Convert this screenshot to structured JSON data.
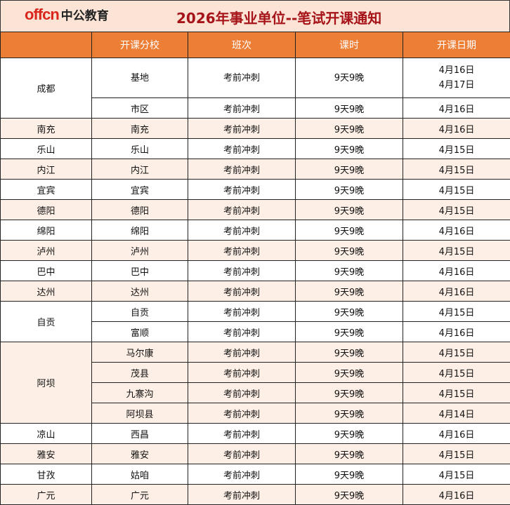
{
  "banner": {
    "logo_en": "offcn",
    "logo_cn": "中公教育",
    "title": "2026年事业单位--笔试开课通知"
  },
  "colors": {
    "header": "#ec7e36",
    "title": "#a6141a",
    "banner": "#fbe4d6",
    "row_alt": "#fdefe5"
  },
  "headers": [
    "",
    "开课分校",
    "班次",
    "课时",
    "开课日期"
  ],
  "groups": [
    {
      "city": "成都",
      "branches": [
        {
          "branch": "基地",
          "class": "考前冲刺",
          "hours": "9天9晚",
          "dates": [
            "4月16日",
            "4月17日"
          ]
        },
        {
          "branch": "市区",
          "class": "考前冲刺",
          "hours": "9天9晚",
          "dates": [
            "4月16日"
          ]
        }
      ]
    },
    {
      "city": "南充",
      "branches": [
        {
          "branch": "南充",
          "class": "考前冲刺",
          "hours": "9天9晚",
          "dates": [
            "4月16日"
          ]
        }
      ]
    },
    {
      "city": "乐山",
      "branches": [
        {
          "branch": "乐山",
          "class": "考前冲刺",
          "hours": "9天9晚",
          "dates": [
            "4月15日"
          ]
        }
      ]
    },
    {
      "city": "内江",
      "branches": [
        {
          "branch": "内江",
          "class": "考前冲刺",
          "hours": "9天9晚",
          "dates": [
            "4月15日"
          ]
        }
      ]
    },
    {
      "city": "宜宾",
      "branches": [
        {
          "branch": "宜宾",
          "class": "考前冲刺",
          "hours": "9天9晚",
          "dates": [
            "4月15日"
          ]
        }
      ]
    },
    {
      "city": "德阳",
      "branches": [
        {
          "branch": "德阳",
          "class": "考前冲刺",
          "hours": "9天9晚",
          "dates": [
            "4月15日"
          ]
        }
      ]
    },
    {
      "city": "绵阳",
      "branches": [
        {
          "branch": "绵阳",
          "class": "考前冲刺",
          "hours": "9天9晚",
          "dates": [
            "4月16日"
          ]
        }
      ]
    },
    {
      "city": "泸州",
      "branches": [
        {
          "branch": "泸州",
          "class": "考前冲刺",
          "hours": "9天9晚",
          "dates": [
            "4月15日"
          ]
        }
      ]
    },
    {
      "city": "巴中",
      "branches": [
        {
          "branch": "巴中",
          "class": "考前冲刺",
          "hours": "9天9晚",
          "dates": [
            "4月16日"
          ]
        }
      ]
    },
    {
      "city": "达州",
      "branches": [
        {
          "branch": "达州",
          "class": "考前冲刺",
          "hours": "9天9晚",
          "dates": [
            "4月16日"
          ]
        }
      ]
    },
    {
      "city": "自贡",
      "branches": [
        {
          "branch": "自贡",
          "class": "考前冲刺",
          "hours": "9天9晚",
          "dates": [
            "4月15日"
          ]
        },
        {
          "branch": "富顺",
          "class": "考前冲刺",
          "hours": "9天9晚",
          "dates": [
            "4月16日"
          ]
        }
      ]
    },
    {
      "city": "阿坝",
      "branches": [
        {
          "branch": "马尔康",
          "class": "考前冲刺",
          "hours": "9天9晚",
          "dates": [
            "4月15日"
          ]
        },
        {
          "branch": "茂县",
          "class": "考前冲刺",
          "hours": "9天9晚",
          "dates": [
            "4月15日"
          ]
        },
        {
          "branch": "九寨沟",
          "class": "考前冲刺",
          "hours": "9天9晚",
          "dates": [
            "4月15日"
          ]
        },
        {
          "branch": "阿坝县",
          "class": "考前冲刺",
          "hours": "9天9晚",
          "dates": [
            "4月14日"
          ]
        }
      ]
    },
    {
      "city": "凉山",
      "branches": [
        {
          "branch": "西昌",
          "class": "考前冲刺",
          "hours": "9天9晚",
          "dates": [
            "4月16日"
          ]
        }
      ]
    },
    {
      "city": "雅安",
      "branches": [
        {
          "branch": "雅安",
          "class": "考前冲刺",
          "hours": "9天9晚",
          "dates": [
            "4月15日"
          ]
        }
      ]
    },
    {
      "city": "甘孜",
      "branches": [
        {
          "branch": "姑咱",
          "class": "考前冲刺",
          "hours": "9天9晚",
          "dates": [
            "4月15日"
          ]
        }
      ]
    },
    {
      "city": "广元",
      "branches": [
        {
          "branch": "广元",
          "class": "考前冲刺",
          "hours": "9天9晚",
          "dates": [
            "4月16日"
          ]
        }
      ]
    }
  ]
}
